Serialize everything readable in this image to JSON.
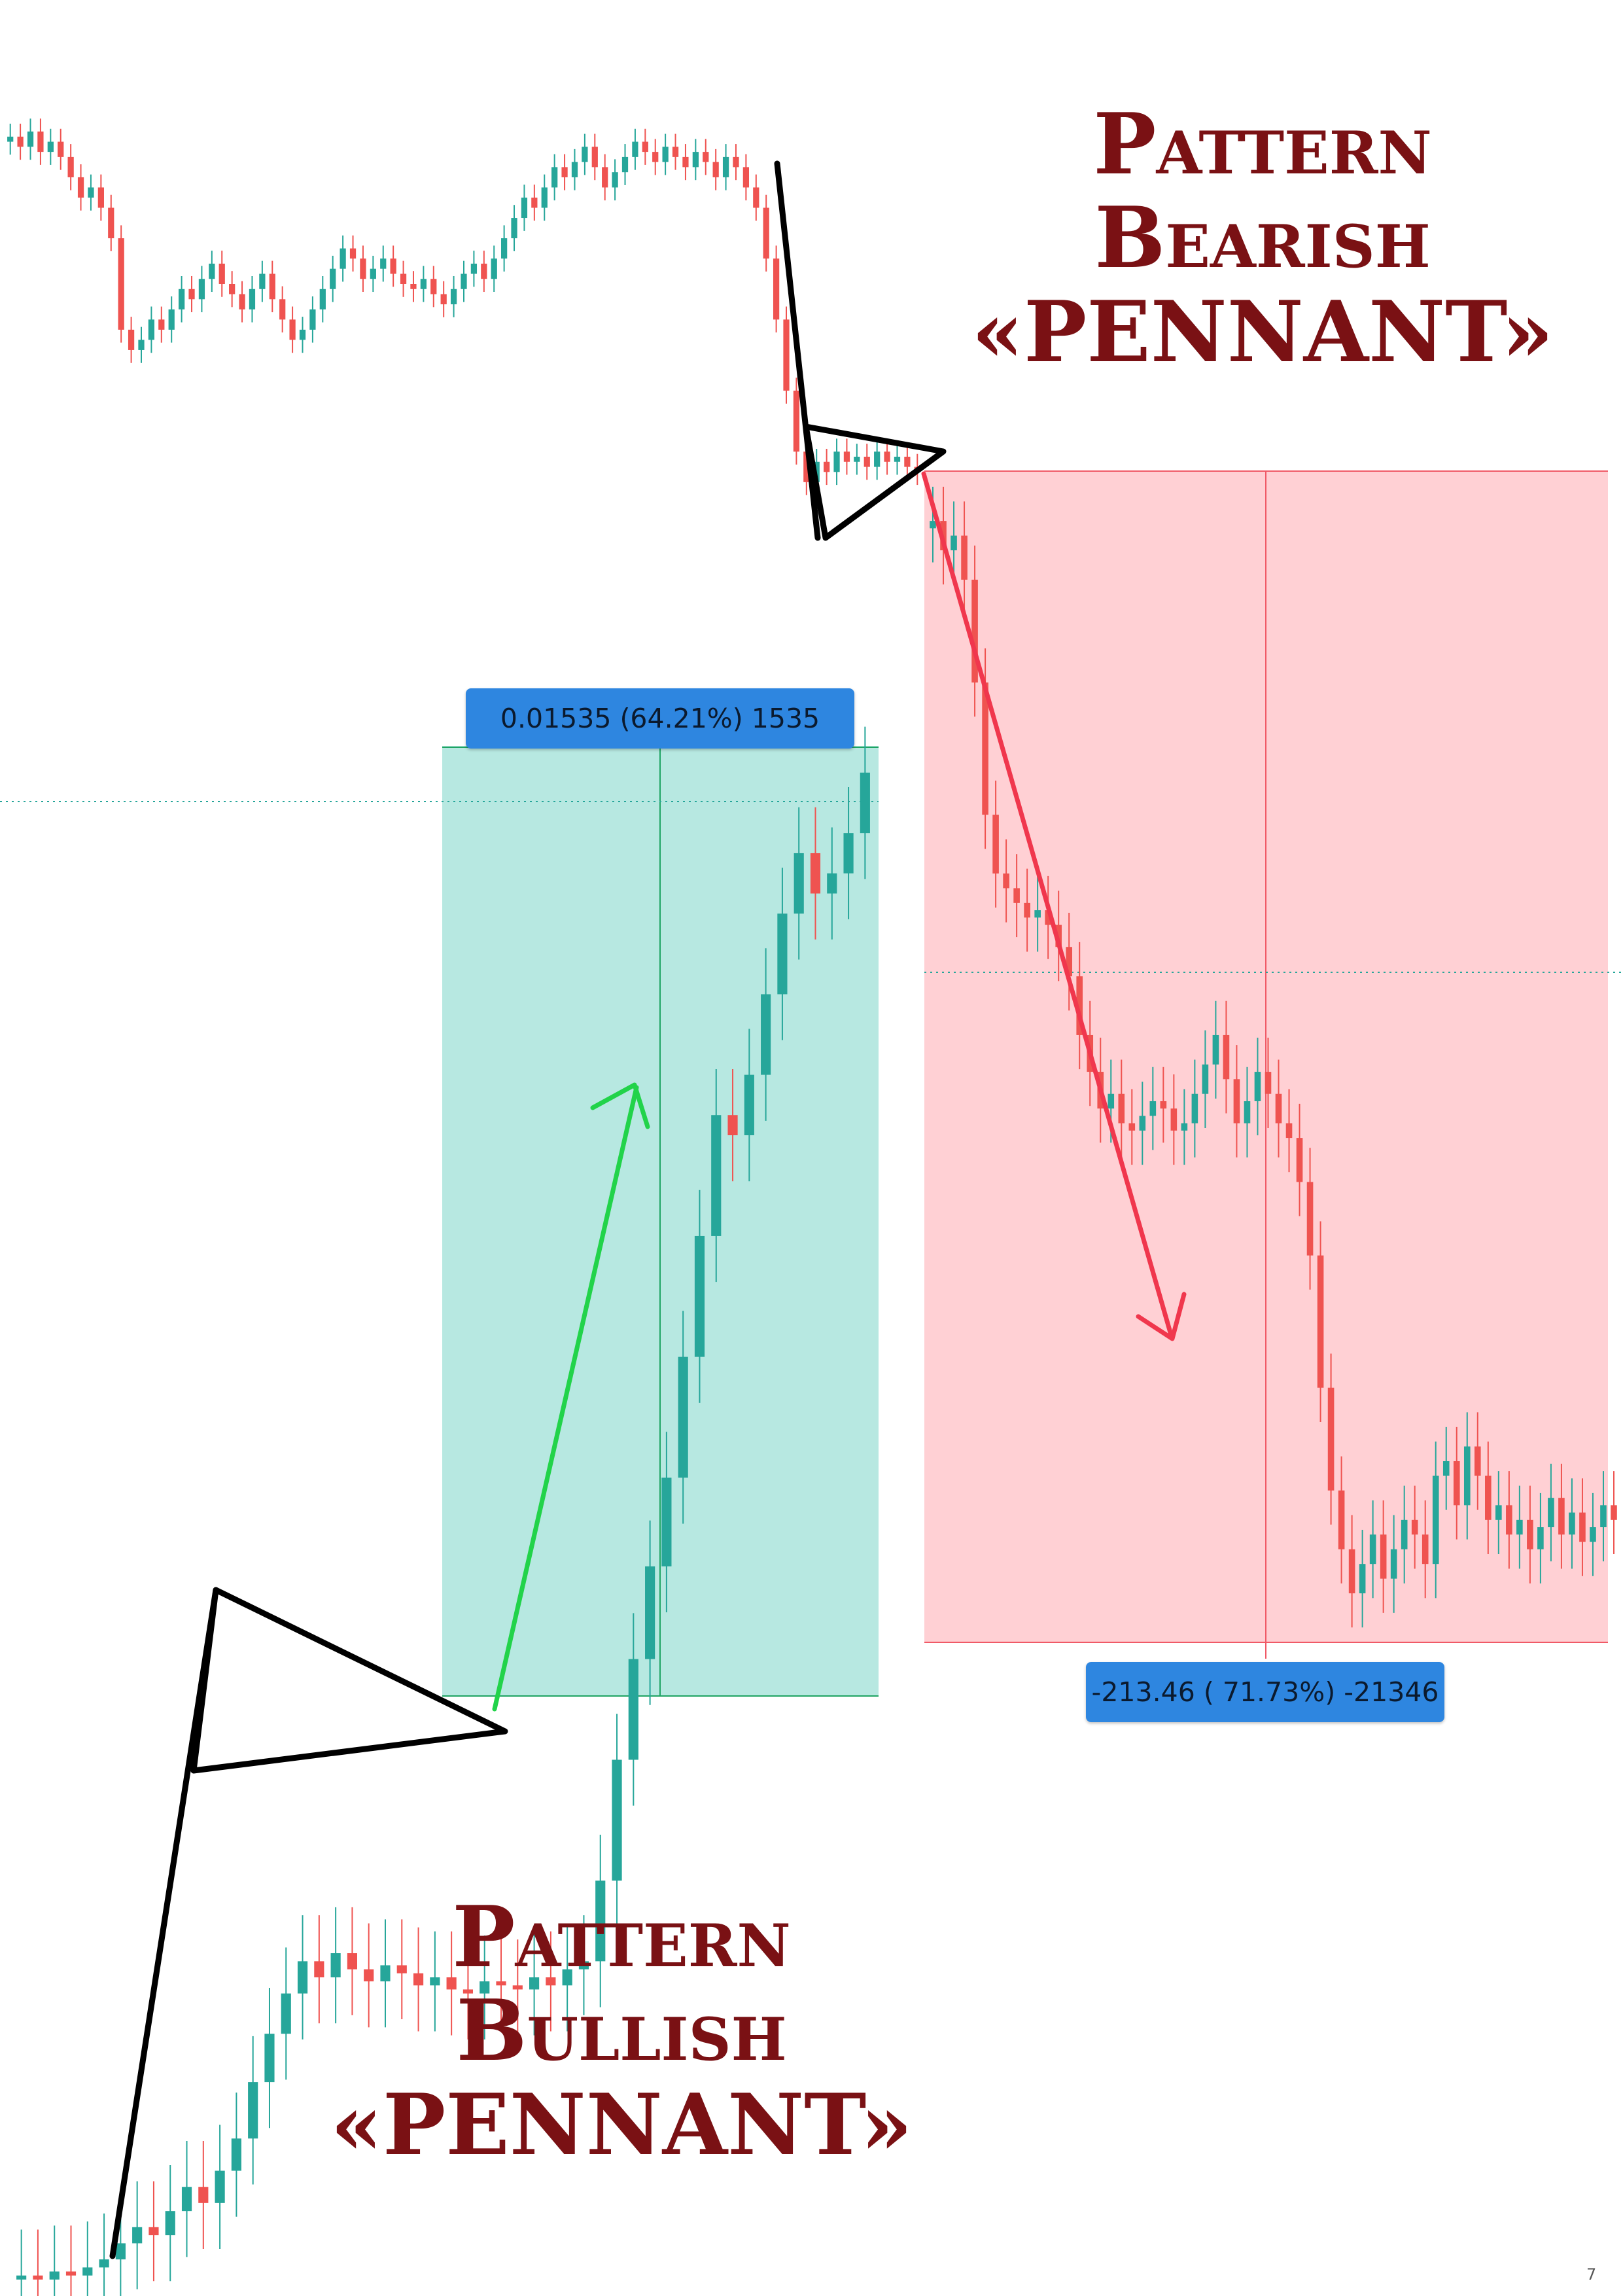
{
  "chart_data": {
    "type": "candlestick",
    "annotations": {
      "bearish_title": [
        "Pattern",
        "Bearish",
        "«PENNANT»"
      ],
      "bullish_title": [
        "Pattern",
        "Bullish",
        "«PENNANT»"
      ],
      "long_measure_label": "0.01535 (64.21%) 1535",
      "short_measure_label": "-213.46 ( 71.73%) -21346"
    },
    "colors": {
      "up": "#26a69a",
      "down": "#ef5350",
      "long_zone": "#b7e8e1",
      "short_zone": "#ffd0d4",
      "title": "#7a1114",
      "label_box": "#2e86e0",
      "trend_up_arrow": "#22d34a",
      "trend_down_arrow": "#f0374d"
    },
    "series": [
      {
        "name": "",
        "segment": "bearish",
        "close": [
          100,
          98,
          101,
          97,
          99,
          96,
          92,
          88,
          90,
          86,
          80,
          62,
          58,
          60,
          64,
          62,
          66,
          70,
          68,
          72,
          75,
          71,
          69,
          66,
          70,
          73,
          68,
          64,
          60,
          62,
          66,
          70,
          74,
          78,
          76,
          72,
          74,
          76,
          73,
          71,
          70,
          72,
          69,
          67,
          70,
          73,
          75,
          72,
          76,
          80,
          84,
          88,
          86,
          90,
          94,
          92,
          95,
          98,
          94,
          90,
          93,
          96,
          99,
          97,
          95,
          98,
          96,
          94,
          97,
          95,
          92,
          96,
          94,
          90,
          86,
          76,
          64,
          50,
          38,
          32,
          36,
          34,
          38,
          36,
          37,
          35,
          38,
          36,
          37,
          35,
          34
        ],
        "y_min": 20,
        "y_max": 105
      },
      {
        "name": "",
        "segment": "bullish",
        "close": [
          2,
          1,
          3,
          2,
          4,
          6,
          10,
          14,
          12,
          18,
          24,
          20,
          28,
          36,
          50,
          62,
          72,
          80,
          76,
          82,
          78,
          75,
          79,
          77,
          74,
          76,
          73,
          72,
          75,
          74,
          73,
          76,
          74,
          78,
          80,
          100,
          130,
          155,
          178,
          200,
          230,
          260,
          290,
          285,
          300,
          320,
          340,
          355,
          345,
          350,
          360,
          375
        ],
        "y_min": 0,
        "y_max": 380
      },
      {
        "name": "",
        "segment": "bearish-drop",
        "close": [
          100,
          96,
          98,
          92,
          78,
          60,
          52,
          50,
          48,
          46,
          47,
          45,
          42,
          38,
          30,
          25,
          20,
          22,
          18,
          17,
          19,
          21,
          20,
          17,
          18,
          22,
          26,
          30,
          24,
          18,
          21,
          25,
          22,
          18,
          16,
          10,
          0,
          -18,
          -32,
          -40,
          -46,
          -42,
          -38,
          -44,
          -40,
          -36,
          -38,
          -42,
          -30,
          -28,
          -34,
          -26,
          -30,
          -36,
          -34,
          -38,
          -36,
          -40,
          -37,
          -33,
          -38,
          -35,
          -39,
          -37,
          -34,
          -36
        ],
        "y_min": -50,
        "y_max": 105
      }
    ]
  }
}
